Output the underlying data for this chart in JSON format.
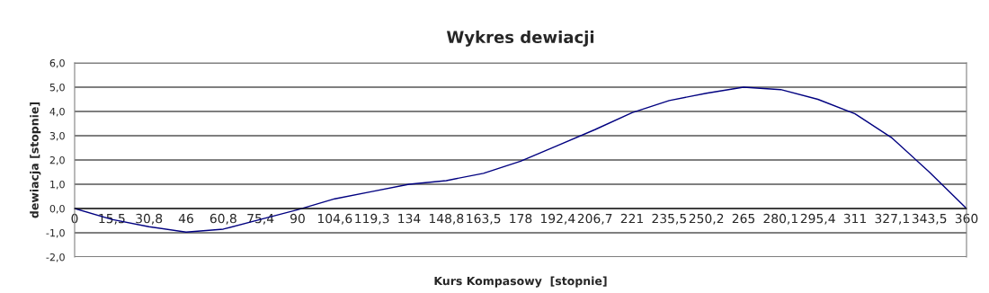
{
  "chart_data": {
    "type": "line",
    "title": "Wykres dewiacji",
    "xlabel": "Kurs Kompasowy  [stopnie]",
    "ylabel": "dewiacja [stopnie]",
    "categories": [
      "0",
      "15,5",
      "30,8",
      "46",
      "60,8",
      "75,4",
      "90",
      "104,6",
      "119,3",
      "134",
      "148,8",
      "163,5",
      "178",
      "192,4",
      "206,7",
      "221",
      "235,5",
      "250,2",
      "265",
      "280,1",
      "295,4",
      "311",
      "327,1",
      "343,5",
      "360"
    ],
    "series": [
      {
        "color": "#000080",
        "values": [
          0.0,
          -0.45,
          -0.75,
          -0.97,
          -0.85,
          -0.45,
          -0.05,
          0.4,
          0.7,
          1.0,
          1.15,
          1.45,
          1.95,
          2.6,
          3.25,
          3.95,
          4.45,
          4.75,
          5.0,
          4.9,
          4.5,
          3.9,
          2.9,
          1.5,
          0.0
        ]
      }
    ],
    "ylim": [
      -2,
      6
    ],
    "yticks": [
      {
        "value": -2,
        "label": "-2,0"
      },
      {
        "value": -1,
        "label": "-1,0"
      },
      {
        "value": 0,
        "label": "0,0"
      },
      {
        "value": 1,
        "label": "1,0"
      },
      {
        "value": 2,
        "label": "2,0"
      },
      {
        "value": 3,
        "label": "3,0"
      },
      {
        "value": 4,
        "label": "4,0"
      },
      {
        "value": 5,
        "label": "5,0"
      },
      {
        "value": 6,
        "label": "6,0"
      }
    ],
    "grid": "y",
    "marker": "none",
    "line_style": "solid"
  }
}
